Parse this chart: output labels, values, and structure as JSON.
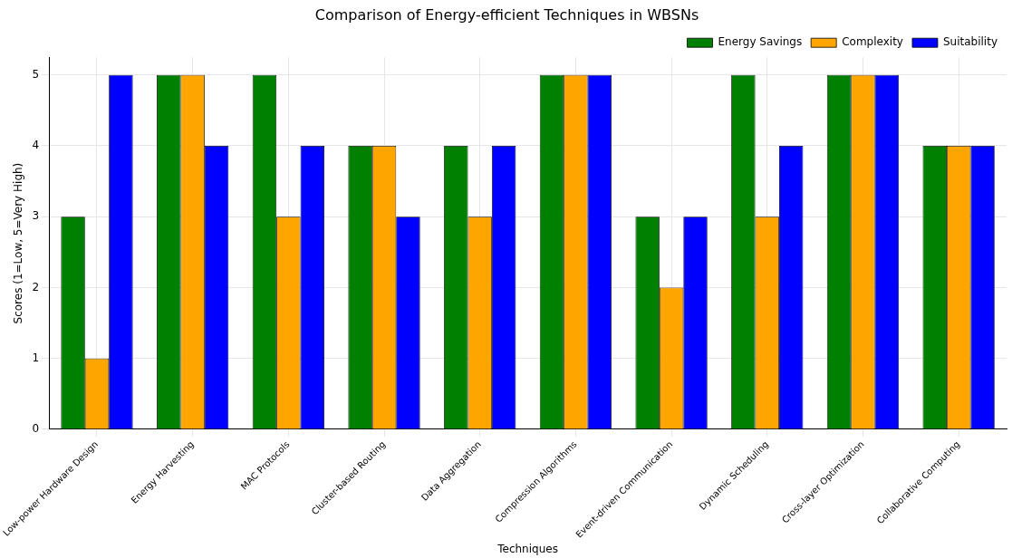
{
  "chart_data": {
    "type": "bar",
    "title": "Comparison of Energy-efficient Techniques in WBSNs",
    "xlabel": "Techniques",
    "ylabel": "Scores (1=Low, 5=Very High)",
    "categories": [
      "Low-power Hardware Design",
      "Energy Harvesting",
      "MAC Protocols",
      "Cluster-based Routing",
      "Data Aggregation",
      "Compression Algorithms",
      "Event-driven Communication",
      "Dynamic Scheduling",
      "Cross-layer Optimization",
      "Collaborative Computing"
    ],
    "series": [
      {
        "name": "Energy Savings",
        "color": "#008000",
        "values": [
          3,
          5,
          5,
          4,
          4,
          5,
          3,
          5,
          5,
          4
        ]
      },
      {
        "name": "Complexity",
        "color": "#ffa500",
        "values": [
          1,
          5,
          3,
          4,
          3,
          5,
          2,
          3,
          5,
          4
        ]
      },
      {
        "name": "Suitability",
        "color": "#0000ff",
        "values": [
          5,
          4,
          4,
          3,
          4,
          5,
          3,
          4,
          5,
          4
        ]
      }
    ],
    "ylim": [
      0,
      5.25
    ],
    "yticks": [
      0,
      1,
      2,
      3,
      4,
      5
    ],
    "grid": true,
    "legend": "top right"
  }
}
